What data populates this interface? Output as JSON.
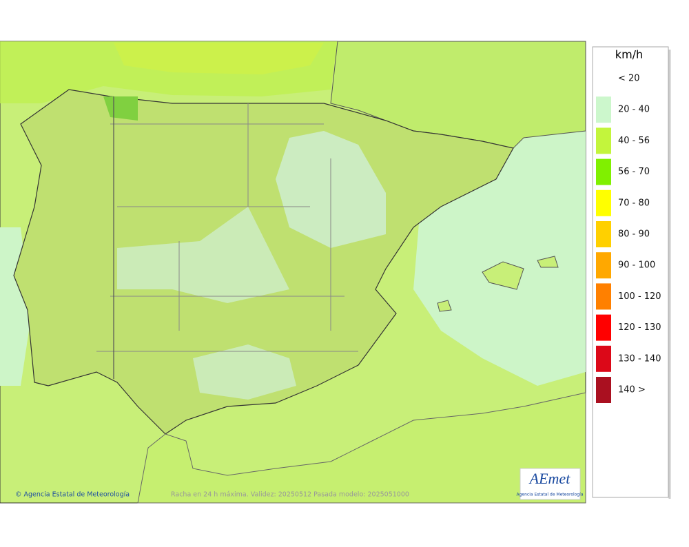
{
  "legend": {
    "title": "km/h",
    "items": [
      {
        "label": "< 20"
      },
      {
        "label": "20 - 40",
        "color": "#ccf7cc"
      },
      {
        "label": "40 - 56",
        "color": "#c3f53c"
      },
      {
        "label": "56 - 70",
        "color": "#80f000"
      },
      {
        "label": "70 - 80",
        "color": "#ffff00"
      },
      {
        "label": "80 - 90",
        "color": "#ffd000"
      },
      {
        "label": "90 - 100",
        "color": "#ffa800"
      },
      {
        "label": "100 - 120",
        "color": "#ff8000"
      },
      {
        "label": "120 - 130",
        "color": "#ff0000"
      },
      {
        "label": "130 - 140",
        "color": "#dc0818"
      },
      {
        "label": "140 >",
        "color": "#aa1020"
      }
    ]
  },
  "footer": {
    "credit": "© Agencia Estatal de Meteorología",
    "caption": "Racha en 24 h máxima. Validez: 20250512 Pasada modelo: 2025051000"
  },
  "logo": {
    "name": "AEmet",
    "subtitle": "Agencia Estatal de Meteorología"
  }
}
